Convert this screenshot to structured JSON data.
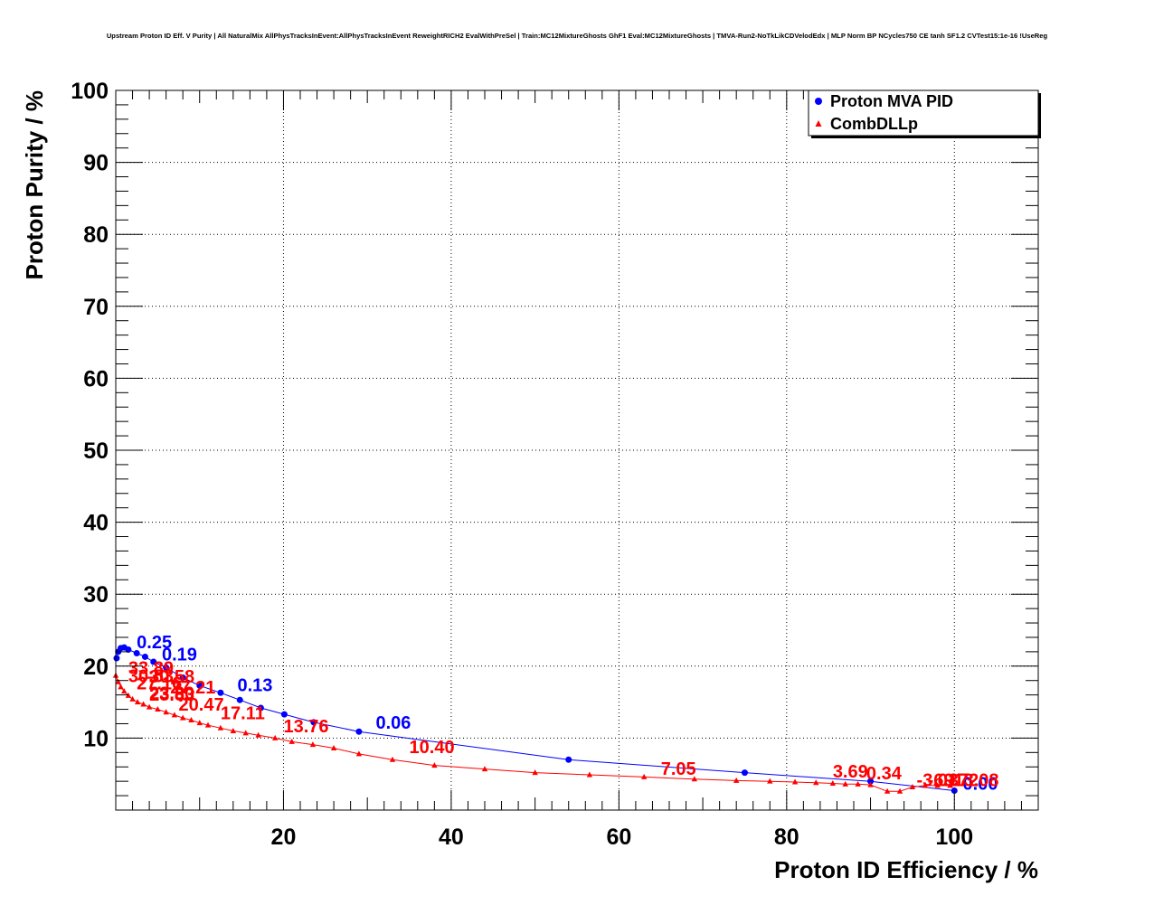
{
  "chart_data": {
    "type": "scatter",
    "title": "Upstream Proton ID Eff. V Purity | All NaturalMix AllPhysTracksInEvent:AllPhysTracksInEvent ReweightRICH2 EvalWithPreSel | Train:MC12MixtureGhosts GhF1 Eval:MC12MixtureGhosts | TMVA-Run2-NoTkLikCDVelodEdx | MLP Norm BP NCycles750 CE tanh SF1.2 CVTest15:1e-16 !UseReg",
    "xlabel": "Proton ID Efficiency / %",
    "ylabel": "Proton Purity / %",
    "xlim": [
      0,
      110
    ],
    "ylim": [
      0,
      100
    ],
    "x_ticks": [
      20,
      40,
      60,
      80,
      100
    ],
    "y_ticks": [
      10,
      20,
      30,
      40,
      50,
      60,
      70,
      80,
      90,
      100
    ],
    "x_tick_labels": [
      "20",
      "40",
      "60",
      "80",
      "100"
    ],
    "y_tick_labels": [
      "10",
      "20",
      "30",
      "40",
      "50",
      "60",
      "70",
      "80",
      "90",
      "100"
    ],
    "grid": true,
    "legend_position": "top-right",
    "series": [
      {
        "name": "Proton MVA PID",
        "color": "#0000ff",
        "marker": "circle",
        "x": [
          0.1,
          0.3,
          0.6,
          1.0,
          1.5,
          2.5,
          3.5,
          4.5,
          6.0,
          8.0,
          10.0,
          12.5,
          14.8,
          17.3,
          20.1,
          23.6,
          29.0,
          54.0,
          75.0,
          90.0,
          100.0
        ],
        "y": [
          21.1,
          22.0,
          22.5,
          22.6,
          22.3,
          21.8,
          21.3,
          20.6,
          19.8,
          18.4,
          17.3,
          16.3,
          15.3,
          14.2,
          13.3,
          12.2,
          10.9,
          7.0,
          5.2,
          4.0,
          2.7
        ],
        "point_labels": [
          {
            "x": 2.5,
            "y": 22.5,
            "text": "0.25"
          },
          {
            "x": 5.5,
            "y": 20.8,
            "text": "0.19"
          },
          {
            "x": 14.5,
            "y": 16.5,
            "text": "0.13"
          },
          {
            "x": 31.0,
            "y": 11.3,
            "text": "0.06"
          },
          {
            "x": 101.0,
            "y": 2.8,
            "text": "0.00"
          }
        ]
      },
      {
        "name": "CombDLLp",
        "color": "#ff0000",
        "marker": "triangle",
        "x": [
          0.0,
          0.3,
          0.6,
          1.0,
          1.5,
          2.0,
          2.6,
          3.3,
          4.0,
          5.0,
          6.0,
          7.0,
          8.0,
          9.0,
          10.0,
          11.0,
          12.5,
          14.0,
          15.5,
          17.0,
          19.0,
          21.0,
          23.5,
          26.0,
          29.0,
          33.0,
          38.0,
          44.0,
          50.0,
          56.5,
          63.0,
          69.0,
          74.0,
          78.0,
          81.0,
          83.5,
          85.5,
          87.0,
          88.5,
          90.0,
          92.0,
          93.5,
          95.0,
          96.5,
          98.0,
          99.5
        ],
        "y": [
          18.7,
          17.8,
          17.1,
          16.5,
          15.9,
          15.4,
          15.0,
          14.7,
          14.3,
          14.0,
          13.6,
          13.2,
          12.8,
          12.5,
          12.1,
          11.8,
          11.4,
          11.0,
          10.7,
          10.4,
          10.0,
          9.5,
          9.1,
          8.6,
          7.8,
          7.0,
          6.2,
          5.7,
          5.2,
          4.9,
          4.6,
          4.3,
          4.1,
          4.0,
          3.9,
          3.8,
          3.7,
          3.6,
          3.6,
          3.5,
          2.6,
          2.6,
          3.2,
          3.4,
          3.4,
          3.4
        ],
        "point_labels": [
          {
            "x": 1.5,
            "y": 18.9,
            "text": "33.89"
          },
          {
            "x": 1.5,
            "y": 17.8,
            "text": "30.53"
          },
          {
            "x": 4.0,
            "y": 17.7,
            "text": "30.58"
          },
          {
            "x": 2.5,
            "y": 16.8,
            "text": "27.16"
          },
          {
            "x": 6.5,
            "y": 16.2,
            "text": "27.21"
          },
          {
            "x": 4.0,
            "y": 15.4,
            "text": "23.80"
          },
          {
            "x": 4.0,
            "y": 15.2,
            "text": "23.83"
          },
          {
            "x": 7.5,
            "y": 13.8,
            "text": "20.47"
          },
          {
            "x": 12.5,
            "y": 12.6,
            "text": "17.11"
          },
          {
            "x": 20.0,
            "y": 10.8,
            "text": "13.76"
          },
          {
            "x": 35.0,
            "y": 7.9,
            "text": "10.40"
          },
          {
            "x": 65.0,
            "y": 4.9,
            "text": "7.05"
          },
          {
            "x": 85.5,
            "y": 4.5,
            "text": "3.69"
          },
          {
            "x": 89.5,
            "y": 4.3,
            "text": "0.34"
          },
          {
            "x": 95.5,
            "y": 3.3,
            "text": "-3.01"
          },
          {
            "x": 96.8,
            "y": 3.3,
            "text": "-6.37"
          },
          {
            "x": 98.0,
            "y": 3.3,
            "text": "-9.72"
          },
          {
            "x": 99.2,
            "y": 3.3,
            "text": "-13.08"
          }
        ]
      }
    ]
  }
}
